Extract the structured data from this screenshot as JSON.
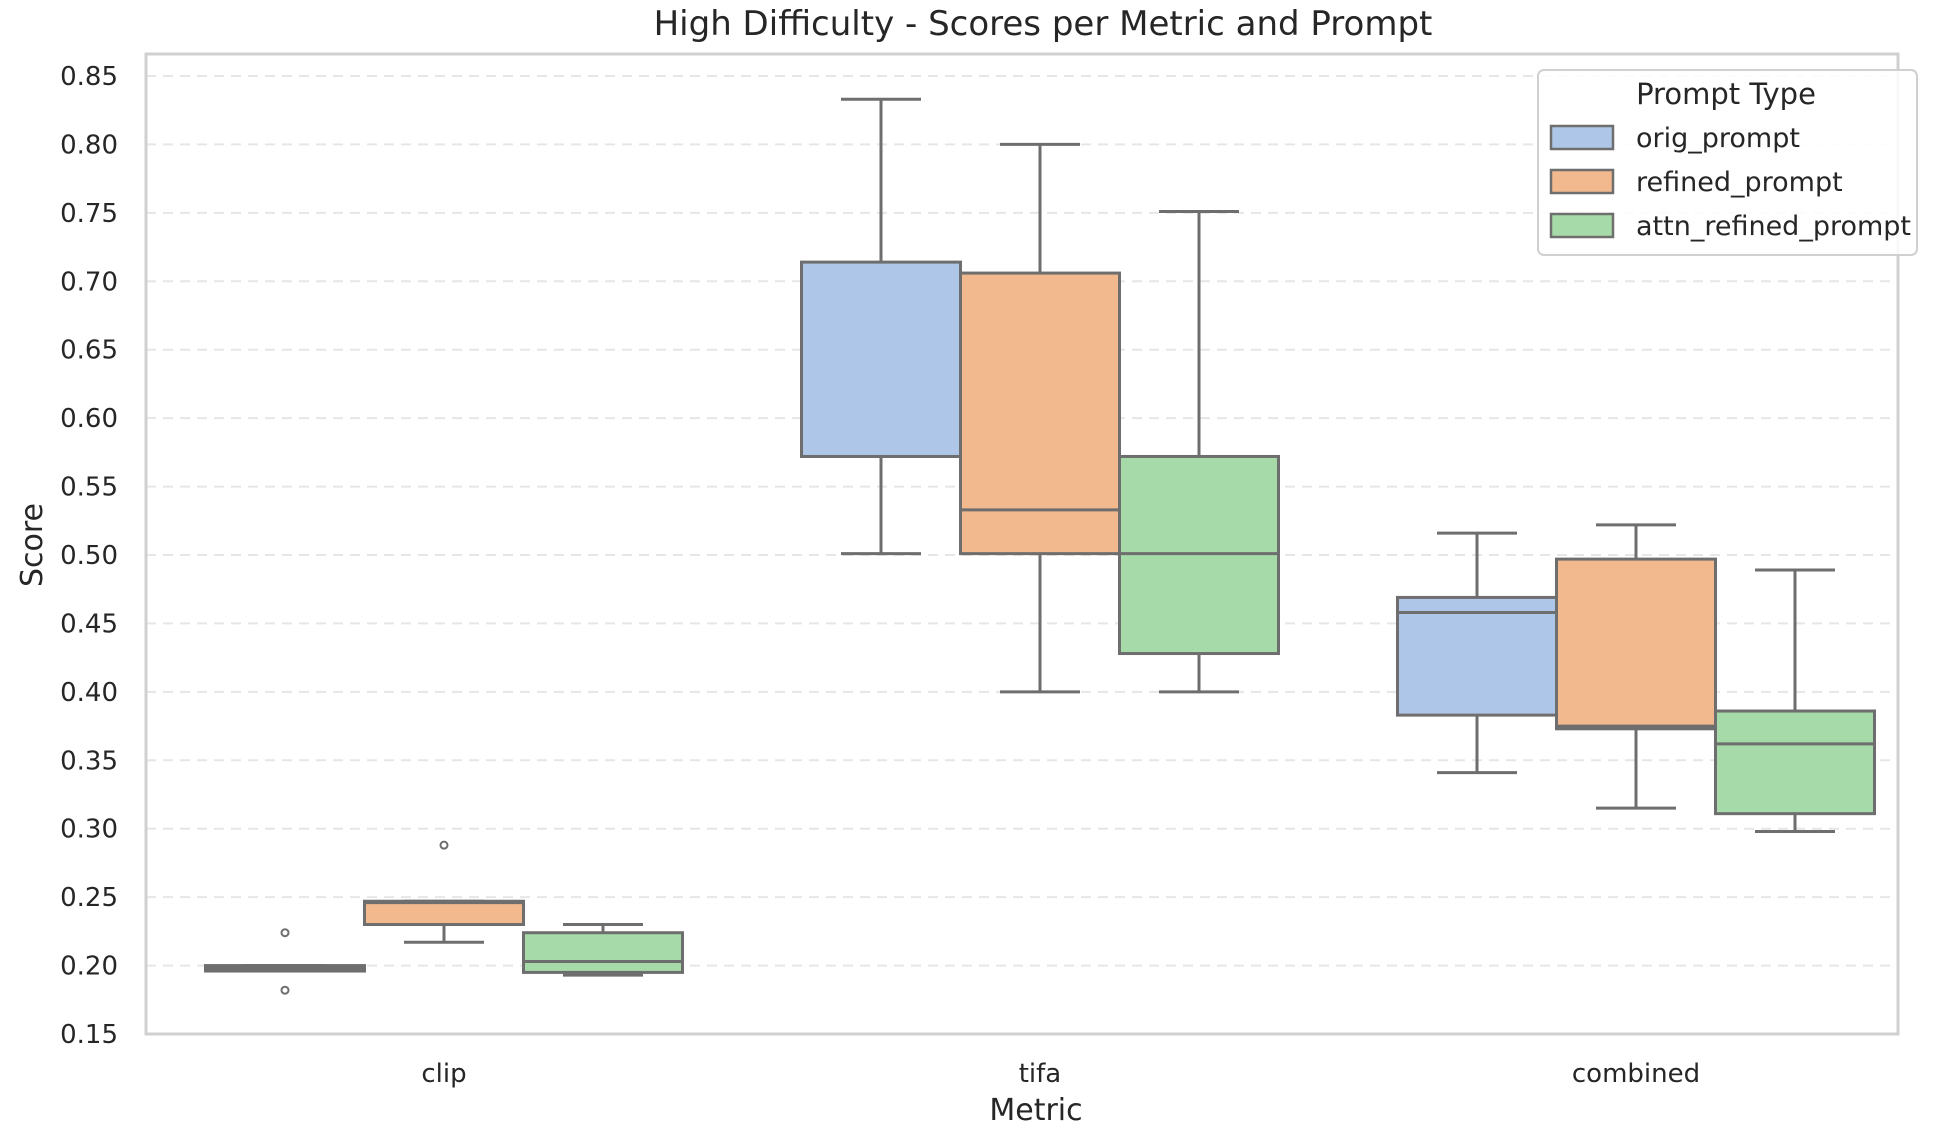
{
  "chart_data": {
    "type": "box",
    "title": "High Difficulty - Scores per Metric and Prompt",
    "xlabel": "Metric",
    "ylabel": "Score",
    "ylim": [
      0.15,
      0.86
    ],
    "yticks": [
      "0.15",
      "0.20",
      "0.25",
      "0.30",
      "0.35",
      "0.40",
      "0.45",
      "0.50",
      "0.55",
      "0.60",
      "0.65",
      "0.70",
      "0.75",
      "0.80",
      "0.85"
    ],
    "grid": "horizontal dashed",
    "categories": [
      "clip",
      "tifa",
      "combined"
    ],
    "legend": {
      "title": "Prompt Type",
      "placement": "top-right"
    },
    "series": [
      {
        "name": "orig_prompt",
        "color": "#aec7e8",
        "boxes": [
          {
            "whislo": 0.196,
            "q1": 0.196,
            "med": 0.198,
            "q3": 0.2,
            "whishi": 0.2,
            "fliers": [
              0.224,
              0.182
            ]
          },
          {
            "whislo": 0.501,
            "q1": 0.572,
            "med": 0.572,
            "q3": 0.714,
            "whishi": 0.833,
            "fliers": []
          },
          {
            "whislo": 0.341,
            "q1": 0.383,
            "med": 0.458,
            "q3": 0.469,
            "whishi": 0.516,
            "fliers": []
          }
        ]
      },
      {
        "name": "refined_prompt",
        "color": "#f2b98e",
        "boxes": [
          {
            "whislo": 0.217,
            "q1": 0.23,
            "med": 0.246,
            "q3": 0.247,
            "whishi": 0.247,
            "fliers": [
              0.288
            ]
          },
          {
            "whislo": 0.4,
            "q1": 0.501,
            "med": 0.533,
            "q3": 0.706,
            "whishi": 0.8,
            "fliers": []
          },
          {
            "whislo": 0.315,
            "q1": 0.373,
            "med": 0.375,
            "q3": 0.497,
            "whishi": 0.522,
            "fliers": []
          }
        ]
      },
      {
        "name": "attn_refined_prompt",
        "color": "#a6dba9",
        "boxes": [
          {
            "whislo": 0.193,
            "q1": 0.195,
            "med": 0.203,
            "q3": 0.224,
            "whishi": 0.23,
            "fliers": []
          },
          {
            "whislo": 0.4,
            "q1": 0.428,
            "med": 0.501,
            "q3": 0.572,
            "whishi": 0.751,
            "fliers": []
          },
          {
            "whislo": 0.298,
            "q1": 0.311,
            "med": 0.362,
            "q3": 0.386,
            "whishi": 0.489,
            "fliers": []
          }
        ]
      }
    ]
  }
}
